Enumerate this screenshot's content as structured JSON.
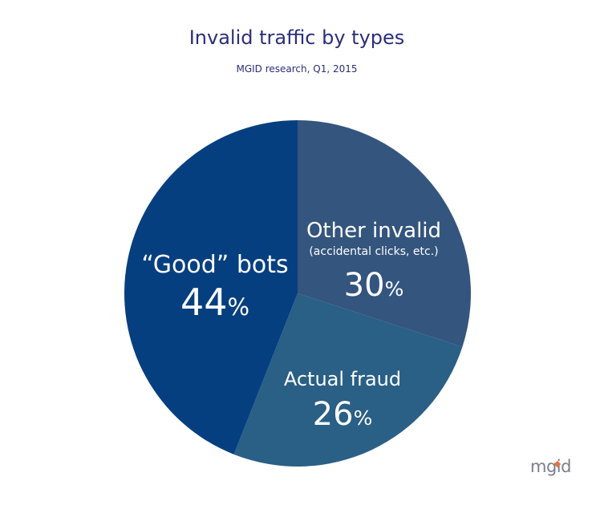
{
  "chart_data": {
    "type": "pie",
    "title": "Invalid traffic by types",
    "subtitle": "MGID research, Q1, 2015",
    "slices": [
      {
        "label": "Other invalid",
        "sublabel": "(accidental clicks, etc.)",
        "value": 30,
        "display": "30",
        "color": "#34557d"
      },
      {
        "label": "Actual fraud",
        "sublabel": "",
        "value": 26,
        "display": "26",
        "color": "#2a5f86"
      },
      {
        "label": "“Good” bots",
        "sublabel": "",
        "value": 44,
        "display": "44",
        "color": "#053f7f"
      }
    ],
    "unit": "%",
    "start_angle_deg": 0,
    "direction": "clockwise"
  },
  "logo": {
    "text": "mgid",
    "accent_color": "#e5743b"
  }
}
